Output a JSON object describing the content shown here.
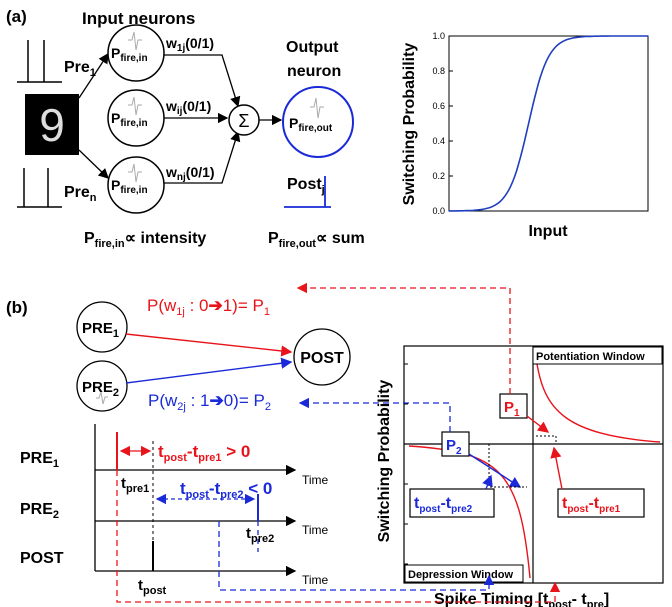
{
  "panel_a": {
    "label": "(a)",
    "input_neurons_title": "Input neurons",
    "output_title_line1": "Output",
    "output_title_line2": "neuron",
    "pre1_label": "Pre",
    "pre1_sub": "1",
    "pren_label": "Pre",
    "pren_sub": "n",
    "digit": "9",
    "neuron_in_label": "P",
    "neuron_in_sub": "fire,in",
    "weights": [
      {
        "w": "w",
        "sub": "1j",
        "suffix": "(0/1)"
      },
      {
        "w": "w",
        "sub": "ij",
        "suffix": "(0/1)"
      },
      {
        "w": "w",
        "sub": "nj",
        "suffix": "(0/1)"
      }
    ],
    "sum_symbol": "Σ",
    "neuron_out_label": "P",
    "neuron_out_sub": "fire,out",
    "post_label": "Post",
    "post_sub": "j",
    "rel_in_label": "P",
    "rel_in_sub": "fire,in",
    "rel_in_rest": "∝ intensity",
    "rel_out_label": "P",
    "rel_out_sub": "fire,out",
    "rel_out_rest": "∝ sum"
  },
  "chart_data": {
    "type": "line",
    "title": "",
    "xlabel": "Input",
    "ylabel": "Switching Probability",
    "ylim": [
      0.0,
      1.0
    ],
    "yticks": [
      "0.0",
      "0.2",
      "0.4",
      "0.6",
      "0.8",
      "1.0"
    ],
    "series": [
      {
        "shape": "sigmoid",
        "color": "#1f3fbf"
      }
    ]
  },
  "panel_b": {
    "label": "(b)",
    "pre1": "PRE",
    "pre1_sub": "1",
    "pre2": "PRE",
    "pre2_sub": "2",
    "post": "POST",
    "eq1_left": "P(w",
    "eq1_sub": "1j",
    "eq1_mid": " : 0",
    "eq1_right": "1)= P",
    "eq1_psub": "1",
    "eq2_left": "P(w",
    "eq2_sub": "2j",
    "eq2_mid": " : 1",
    "eq2_right": "0)= P",
    "eq2_psub": "2",
    "row_pre1": "PRE",
    "row_pre1_sub": "1",
    "row_pre2": "PRE",
    "row_pre2_sub": "2",
    "row_post": "POST",
    "time": "Time",
    "t_pre1": "t",
    "t_pre1_sub": "pre1",
    "t_pre2": "t",
    "t_pre2_sub": "pre2",
    "t_post": "t",
    "t_post_sub": "post",
    "dt_pos_a": "t",
    "dt_pos_a_sub": "post",
    "dt_pos_b": "-t",
    "dt_pos_b_sub": "pre1",
    "dt_pos_c": " > 0",
    "dt_neg_a": "t",
    "dt_neg_a_sub": "post",
    "dt_neg_b": "-t",
    "dt_neg_b_sub": "pre2",
    "dt_neg_c": " < 0",
    "stdp_ylabel": "Switching Probability",
    "stdp_xlabel_a": "Spike Timing [t",
    "stdp_xlabel_sub1": "post",
    "stdp_xlabel_b": "- t",
    "stdp_xlabel_sub2": "pre",
    "stdp_xlabel_c": "]",
    "potentiation": "Potentiation Window",
    "depression": "Depression Window",
    "box_p1": "P",
    "box_p1_sub": "1",
    "box_p2": "P",
    "box_p2_sub": "2",
    "box_neg_a": "t",
    "box_neg_sub1": "post",
    "box_neg_b": "-t",
    "box_neg_sub2": "pre2",
    "box_pos_a": "t",
    "box_pos_sub1": "post",
    "box_pos_b": "-t",
    "box_pos_sub2": "pre1"
  },
  "colors": {
    "red": "#e8141b",
    "blue": "#1a2ad8",
    "black": "#000000"
  }
}
